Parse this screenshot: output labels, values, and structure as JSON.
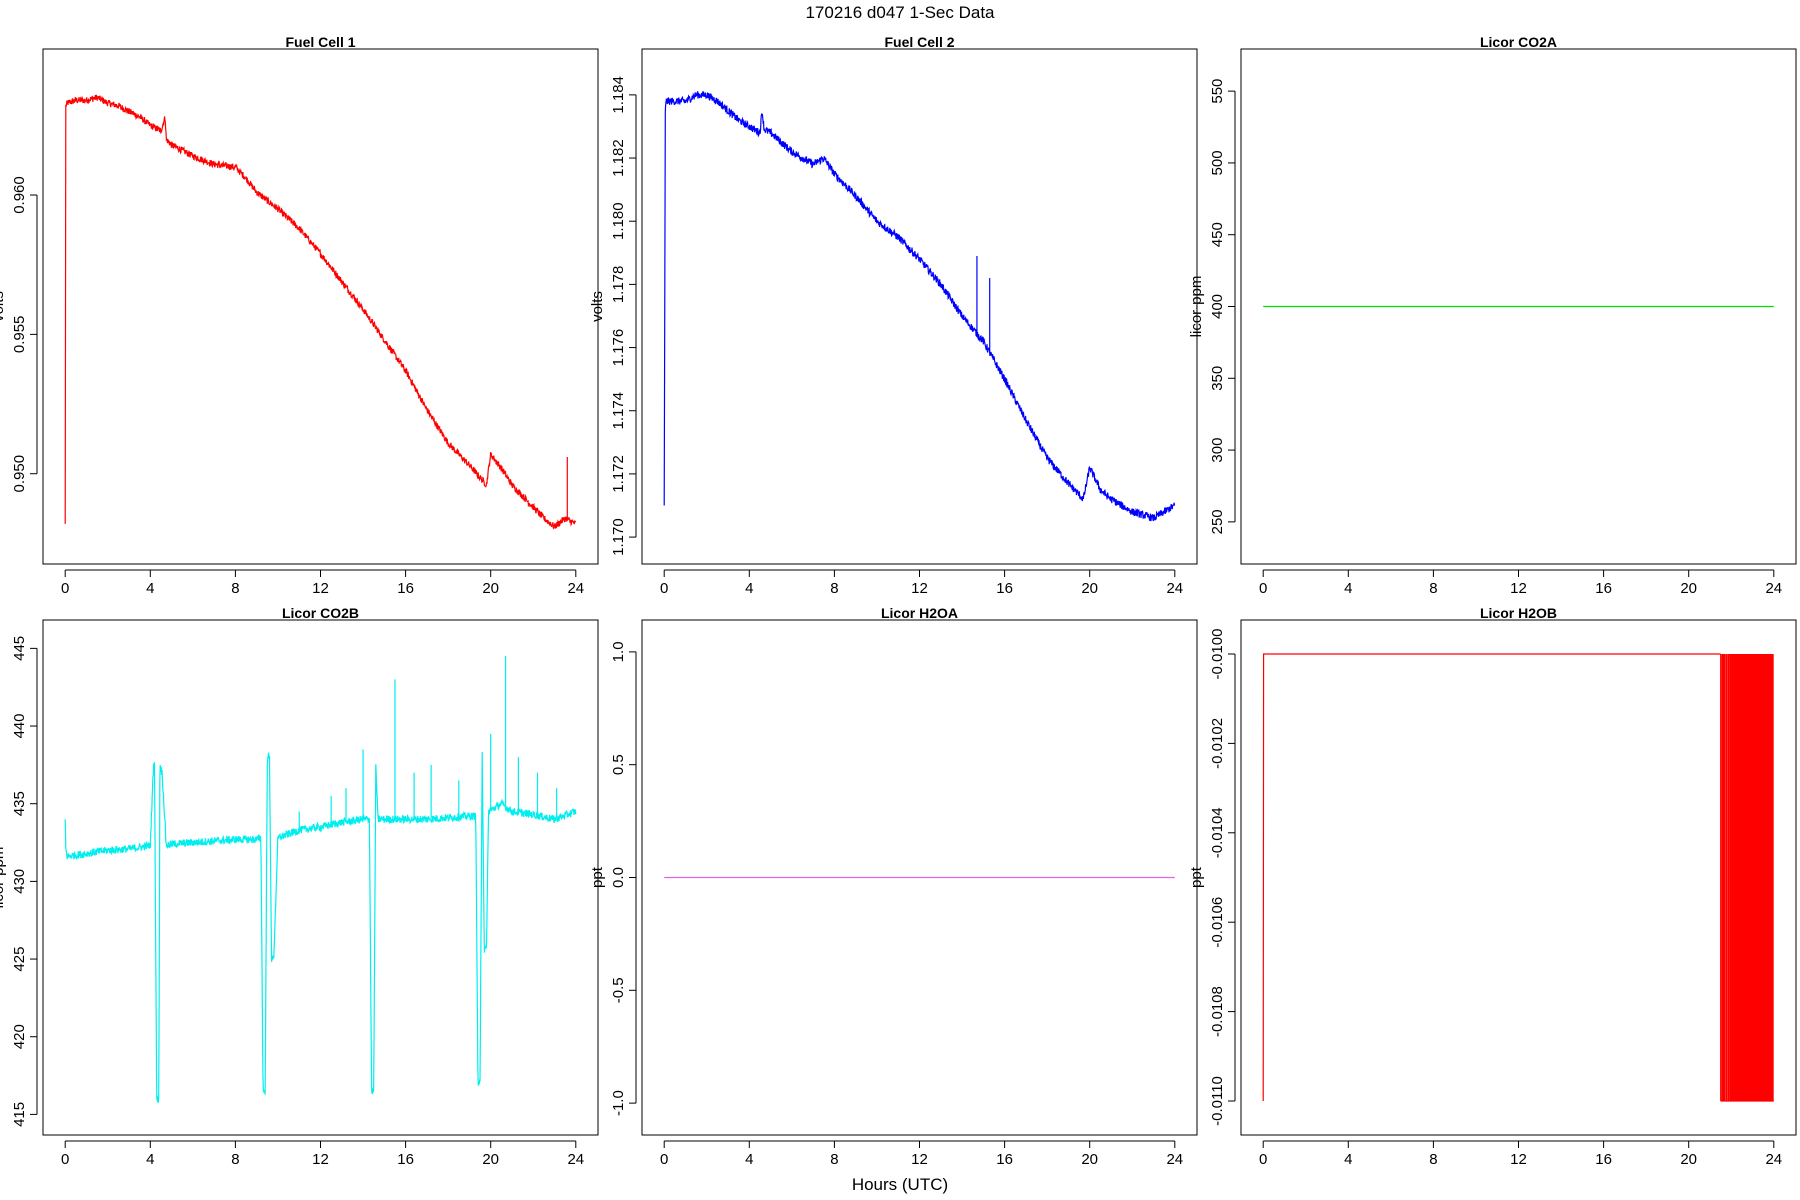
{
  "header": {
    "title": "170216   d047   1-Sec Data",
    "xlabel": "Hours (UTC)"
  },
  "chart_data": [
    {
      "type": "line",
      "title": "Fuel Cell 1",
      "ylabel": "volts",
      "color": "#ff0000",
      "xlim": [
        0,
        24
      ],
      "ylim": [
        0.9475,
        0.9645
      ],
      "xticks": [
        "0",
        "4",
        "8",
        "12",
        "16",
        "20",
        "24"
      ],
      "yticks": [
        {
          "v": 0.95,
          "label": "0.950"
        },
        {
          "v": 0.955,
          "label": "0.955"
        },
        {
          "v": 0.96,
          "label": "0.960"
        }
      ],
      "x": [
        0,
        0.03,
        0.1,
        0.5,
        1,
        1.5,
        2,
        2.5,
        3,
        3.5,
        4,
        4.5,
        4.7,
        4.75,
        5,
        6,
        7,
        8,
        8.5,
        9,
        10,
        11,
        12,
        13,
        14,
        15,
        16,
        17,
        18,
        19,
        19.8,
        20,
        20.5,
        21,
        21.5,
        22,
        22.5,
        23,
        23.5,
        24
      ],
      "y": [
        0.9482,
        0.9632,
        0.9633,
        0.9634,
        0.9634,
        0.9635,
        0.9633,
        0.9632,
        0.963,
        0.9628,
        0.9625,
        0.9623,
        0.9628,
        0.962,
        0.9618,
        0.9614,
        0.9611,
        0.961,
        0.9606,
        0.9601,
        0.9595,
        0.9588,
        0.9579,
        0.9569,
        0.9559,
        0.9548,
        0.9537,
        0.9523,
        0.9511,
        0.9503,
        0.9496,
        0.9507,
        0.9502,
        0.9496,
        0.9492,
        0.9488,
        0.9484,
        0.9481,
        0.9484,
        0.9482
      ],
      "noise": 0.00012,
      "spikes": [
        {
          "x": 23.6,
          "y": 0.9506
        }
      ]
    },
    {
      "type": "line",
      "title": "Fuel Cell 2",
      "ylabel": "volts",
      "color": "#0000ff",
      "xlim": [
        0,
        24
      ],
      "ylim": [
        1.1698,
        1.1848
      ],
      "xticks": [
        "0",
        "4",
        "8",
        "12",
        "16",
        "20",
        "24"
      ],
      "yticks": [
        {
          "v": 1.17,
          "label": "1.170"
        },
        {
          "v": 1.172,
          "label": "1.172"
        },
        {
          "v": 1.174,
          "label": "1.174"
        },
        {
          "v": 1.176,
          "label": "1.176"
        },
        {
          "v": 1.178,
          "label": "1.178"
        },
        {
          "v": 1.18,
          "label": "1.180"
        },
        {
          "v": 1.182,
          "label": "1.182"
        },
        {
          "v": 1.184,
          "label": "1.184"
        }
      ],
      "x": [
        0,
        0.05,
        0.1,
        0.5,
        1,
        1.5,
        2,
        2.5,
        3,
        3.5,
        4,
        4.5,
        4.6,
        4.7,
        5,
        6,
        7,
        7.5,
        8,
        9,
        10,
        11,
        12,
        13,
        14,
        15,
        16,
        17,
        18,
        19,
        19.7,
        20,
        20.5,
        21,
        21.5,
        22,
        22.5,
        23,
        23.5,
        24
      ],
      "y": [
        1.171,
        1.1835,
        1.1838,
        1.1838,
        1.1838,
        1.184,
        1.184,
        1.1838,
        1.1835,
        1.1832,
        1.183,
        1.1828,
        1.1835,
        1.1829,
        1.1828,
        1.1822,
        1.1818,
        1.182,
        1.1815,
        1.1808,
        1.18,
        1.1795,
        1.1788,
        1.178,
        1.177,
        1.1762,
        1.175,
        1.1737,
        1.1725,
        1.1717,
        1.1712,
        1.1722,
        1.1715,
        1.1712,
        1.171,
        1.1708,
        1.1707,
        1.1706,
        1.1708,
        1.171
      ],
      "noise": 0.00012,
      "spikes": [
        {
          "x": 14.7,
          "y": 1.1789
        },
        {
          "x": 15.3,
          "y": 1.1782
        }
      ]
    },
    {
      "type": "line",
      "title": "Licor CO2A",
      "ylabel": "licor-ppm",
      "color": "#00dd00",
      "xlim": [
        0,
        24
      ],
      "ylim": [
        235,
        565
      ],
      "xticks": [
        "0",
        "4",
        "8",
        "12",
        "16",
        "20",
        "24"
      ],
      "yticks": [
        {
          "v": 250,
          "label": "250"
        },
        {
          "v": 300,
          "label": "300"
        },
        {
          "v": 350,
          "label": "350"
        },
        {
          "v": 400,
          "label": "400"
        },
        {
          "v": 450,
          "label": "450"
        },
        {
          "v": 500,
          "label": "500"
        },
        {
          "v": 550,
          "label": "550"
        }
      ],
      "x": [
        0,
        24
      ],
      "y": [
        400,
        400
      ],
      "noise": 0
    },
    {
      "type": "line",
      "title": "Licor CO2B",
      "ylabel": "licor-ppm",
      "color": "#00eeee",
      "xlim": [
        0,
        24
      ],
      "ylim": [
        415,
        445.5
      ],
      "xticks": [
        "0",
        "4",
        "8",
        "12",
        "16",
        "20",
        "24"
      ],
      "yticks": [
        {
          "v": 415,
          "label": "415"
        },
        {
          "v": 420,
          "label": "420"
        },
        {
          "v": 425,
          "label": "425"
        },
        {
          "v": 430,
          "label": "430"
        },
        {
          "v": 435,
          "label": "435"
        },
        {
          "v": 440,
          "label": "440"
        },
        {
          "v": 445,
          "label": "445"
        }
      ],
      "x": [
        0,
        0.03,
        0.1,
        1,
        2,
        3,
        4,
        4.15,
        4.2,
        4.3,
        4.4,
        4.45,
        4.55,
        4.6,
        4.75,
        5,
        6,
        7,
        8,
        9,
        9.2,
        9.3,
        9.4,
        9.5,
        9.6,
        9.7,
        9.8,
        10,
        11,
        12,
        13,
        14,
        14.3,
        14.4,
        14.5,
        14.6,
        14.7,
        15,
        16,
        17,
        18,
        19,
        19.3,
        19.4,
        19.5,
        19.6,
        19.7,
        19.8,
        19.9,
        20.5,
        21,
        22,
        23,
        24
      ],
      "y": [
        434,
        432,
        431.6,
        431.8,
        432,
        432.1,
        432.3,
        437.5,
        437.5,
        416,
        416,
        437.5,
        437,
        436,
        432.3,
        432.4,
        432.5,
        432.6,
        432.7,
        432.7,
        432.8,
        416.5,
        416.5,
        438,
        438,
        425,
        425,
        432.8,
        433.3,
        433.5,
        433.8,
        434,
        434,
        416.5,
        416.5,
        437.5,
        434,
        434,
        434,
        434,
        434.1,
        434.2,
        434.2,
        417,
        417,
        438.5,
        425.6,
        425.6,
        434.5,
        435,
        434.5,
        434.3,
        434,
        434.5
      ],
      "noise": 0.25,
      "spikes": [
        {
          "x": 11,
          "y": 434.5
        },
        {
          "x": 12.5,
          "y": 435.5
        },
        {
          "x": 13.2,
          "y": 436
        },
        {
          "x": 14.0,
          "y": 438.5
        },
        {
          "x": 15.5,
          "y": 443
        },
        {
          "x": 16.4,
          "y": 437
        },
        {
          "x": 17.2,
          "y": 437.5
        },
        {
          "x": 18.5,
          "y": 436.5
        },
        {
          "x": 20.0,
          "y": 439.5
        },
        {
          "x": 20.7,
          "y": 444.5
        },
        {
          "x": 21.3,
          "y": 438
        },
        {
          "x": 22.2,
          "y": 437
        },
        {
          "x": 23.1,
          "y": 436
        }
      ]
    },
    {
      "type": "line",
      "title": "Licor H2OA",
      "ylabel": "ppt",
      "color": "#dd66dd",
      "xlim": [
        0,
        24
      ],
      "ylim": [
        -1.05,
        1.05
      ],
      "xticks": [
        "0",
        "4",
        "8",
        "12",
        "16",
        "20",
        "24"
      ],
      "yticks": [
        {
          "v": -1.0,
          "label": "-1.0"
        },
        {
          "v": -0.5,
          "label": "-0.5"
        },
        {
          "v": 0.0,
          "label": "0.0"
        },
        {
          "v": 0.5,
          "label": "0.5"
        },
        {
          "v": 1.0,
          "label": "1.0"
        }
      ],
      "x": [
        0,
        24
      ],
      "y": [
        0,
        0
      ],
      "noise": 0
    },
    {
      "type": "line",
      "title": "Licor H2OB",
      "ylabel": "ppt",
      "color": "#ff0000",
      "xlim": [
        0,
        24
      ],
      "ylim": [
        -0.01103,
        -0.00997
      ],
      "xticks": [
        "0",
        "4",
        "8",
        "12",
        "16",
        "20",
        "24"
      ],
      "yticks": [
        {
          "v": -0.011,
          "label": "-0.0110"
        },
        {
          "v": -0.0108,
          "label": "-0.0108"
        },
        {
          "v": -0.0106,
          "label": "-0.0106"
        },
        {
          "v": -0.0104,
          "label": "-0.0104"
        },
        {
          "v": -0.0102,
          "label": "-0.0102"
        },
        {
          "v": -0.01,
          "label": "-0.0100"
        }
      ],
      "x": [
        0,
        0.02,
        21.5
      ],
      "y": [
        -0.011,
        -0.01,
        -0.01
      ],
      "noise": 0,
      "toggle": {
        "x0": 21.5,
        "x1": 24,
        "hi": -0.01,
        "lo": -0.011
      }
    }
  ]
}
